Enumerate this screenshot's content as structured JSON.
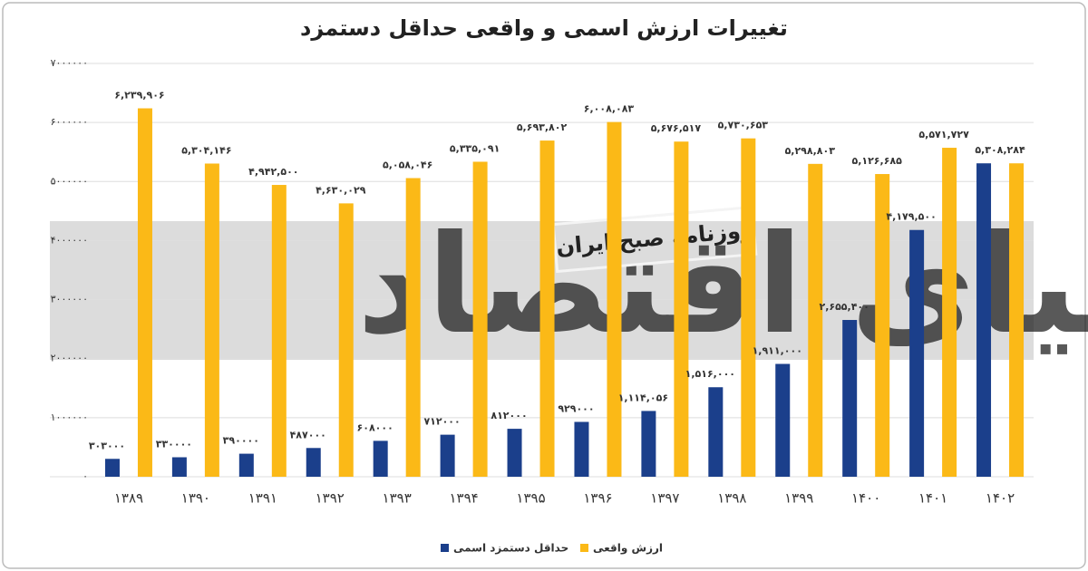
{
  "chart_data": {
    "type": "bar",
    "title": "تغییرات ارزش اسمی و واقعی حداقل دستمزد",
    "watermark": {
      "brand": "دنیای اقتصاد",
      "badge": "روزنامه صبح ایران"
    },
    "categories": [
      "۱۳۸۹",
      "۱۳۹۰",
      "۱۳۹۱",
      "۱۳۹۲",
      "۱۳۹۳",
      "۱۳۹۴",
      "۱۳۹۵",
      "۱۳۹۶",
      "۱۳۹۷",
      "۱۳۹۸",
      "۱۳۹۹",
      "۱۴۰۰",
      "۱۴۰۱",
      "۱۴۰۲"
    ],
    "series": [
      {
        "name": "حداقل دستمزد اسمی",
        "color": "#1b3f8b",
        "values": [
          303000,
          330000,
          390000,
          487000,
          608000,
          712000,
          812000,
          929000,
          1114056,
          1516000,
          1911000,
          2655400,
          4179500,
          5308284
        ],
        "value_labels": [
          "۳۰۳۰۰۰",
          "۳۳۰۰۰۰",
          "۳۹۰۰۰۰",
          "۴۸۷۰۰۰",
          "۶۰۸۰۰۰",
          "۷۱۲۰۰۰",
          "۸۱۲۰۰۰",
          "۹۲۹۰۰۰",
          "۱,۱۱۴,۰۵۶",
          "۱,۵۱۶,۰۰۰",
          "۱,۹۱۱,۰۰۰",
          "۲,۶۵۵,۴۰۰",
          "۴,۱۷۹,۵۰۰",
          "۵,۳۰۸,۲۸۴"
        ]
      },
      {
        "name": "ارزش واقعی",
        "color": "#fbb917",
        "values": [
          6239906,
          5304146,
          4942500,
          4630029,
          5058046,
          5335091,
          5693802,
          6008083,
          5676517,
          5730653,
          5298803,
          5126685,
          5571727,
          5308284
        ],
        "value_labels": [
          "۶,۲۳۹,۹۰۶",
          "۵,۳۰۴,۱۴۶",
          "۴,۹۴۲,۵۰۰",
          "۴,۶۳۰,۰۲۹",
          "۵,۰۵۸,۰۴۶",
          "۵,۳۳۵,۰۹۱",
          "۵,۶۹۳,۸۰۲",
          "۶,۰۰۸,۰۸۳",
          "۵,۶۷۶,۵۱۷",
          "۵,۷۳۰,۶۵۳",
          "۵,۲۹۸,۸۰۳",
          "۵,۱۲۶,۶۸۵",
          "۵,۵۷۱,۷۲۷",
          null
        ]
      }
    ],
    "ylim": [
      0,
      7000000
    ],
    "yticks": [
      {
        "value": 0,
        "label": "۰"
      },
      {
        "value": 1000000,
        "label": "۱۰۰۰۰۰۰"
      },
      {
        "value": 2000000,
        "label": "۲۰۰۰۰۰۰"
      },
      {
        "value": 3000000,
        "label": "۳۰۰۰۰۰۰"
      },
      {
        "value": 4000000,
        "label": "۴۰۰۰۰۰۰"
      },
      {
        "value": 5000000,
        "label": "۵۰۰۰۰۰۰"
      },
      {
        "value": 6000000,
        "label": "۶۰۰۰۰۰۰"
      },
      {
        "value": 7000000,
        "label": "۷۰۰۰۰۰۰"
      }
    ],
    "grid": true,
    "legend": "bottom"
  }
}
